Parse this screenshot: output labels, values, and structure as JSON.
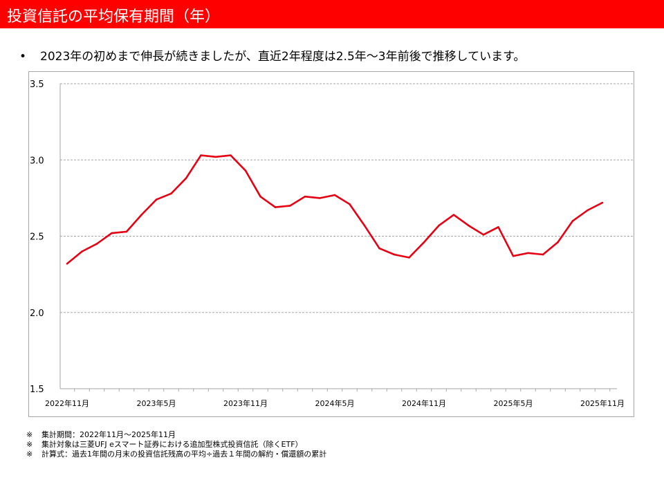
{
  "header": {
    "title": "投資信託の平均保有期間（年）",
    "bar_color": "#ff0000"
  },
  "summary": {
    "bullet": "•",
    "text": "2023年の初めまで伸長が続きましたが、直近2年程度は2.5年～3年前後で推移しています。"
  },
  "chart_data": {
    "type": "line",
    "title": "",
    "xlabel": "",
    "ylabel": "",
    "ylim": [
      1.5,
      3.5
    ],
    "y_ticks": [
      "1.5",
      "2.0",
      "2.5",
      "3.0",
      "3.5"
    ],
    "grid": "horizontal dashed",
    "legend": "none",
    "line_color": "#e60012",
    "x_tick_labels": [
      {
        "index": 0,
        "label": "2022年11月"
      },
      {
        "index": 6,
        "label": "2023年5月"
      },
      {
        "index": 12,
        "label": "2023年11月"
      },
      {
        "index": 18,
        "label": "2024年5月"
      },
      {
        "index": 24,
        "label": "2024年11月"
      },
      {
        "index": 30,
        "label": "2025年5月"
      },
      {
        "index": 36,
        "label": "2025年11月"
      }
    ],
    "x": [
      "2022-11",
      "2022-12",
      "2023-01",
      "2023-02",
      "2023-03",
      "2023-04",
      "2023-05",
      "2023-06",
      "2023-07",
      "2023-08",
      "2023-09",
      "2023-10",
      "2023-11",
      "2023-12",
      "2024-01",
      "2024-02",
      "2024-03",
      "2024-04",
      "2024-05",
      "2024-06",
      "2024-07",
      "2024-08",
      "2024-09",
      "2024-10",
      "2024-11",
      "2024-12",
      "2025-01",
      "2025-02",
      "2025-03",
      "2025-04",
      "2025-05",
      "2025-06",
      "2025-07",
      "2025-08",
      "2025-09",
      "2025-10",
      "2025-11"
    ],
    "series": [
      {
        "values": [
          2.32,
          2.4,
          2.45,
          2.52,
          2.53,
          2.64,
          2.74,
          2.78,
          2.88,
          3.03,
          3.02,
          3.03,
          2.93,
          2.76,
          2.69,
          2.7,
          2.76,
          2.75,
          2.77,
          2.71,
          2.57,
          2.42,
          2.38,
          2.36,
          2.46,
          2.57,
          2.64,
          2.57,
          2.51,
          2.56,
          2.37,
          2.39,
          2.38,
          2.46,
          2.6,
          2.67,
          2.72
        ]
      }
    ]
  },
  "notes": [
    {
      "mark": "※",
      "text": "集計期間：2022年11月～2025年11月"
    },
    {
      "mark": "※",
      "text": "集計対象は三菱UFJ eスマート証券における追加型株式投資信託（除くETF）"
    },
    {
      "mark": "※",
      "text": "計算式：過去1年間の月末の投資信託残高の平均÷過去１年間の解約・償還額の累計"
    }
  ]
}
